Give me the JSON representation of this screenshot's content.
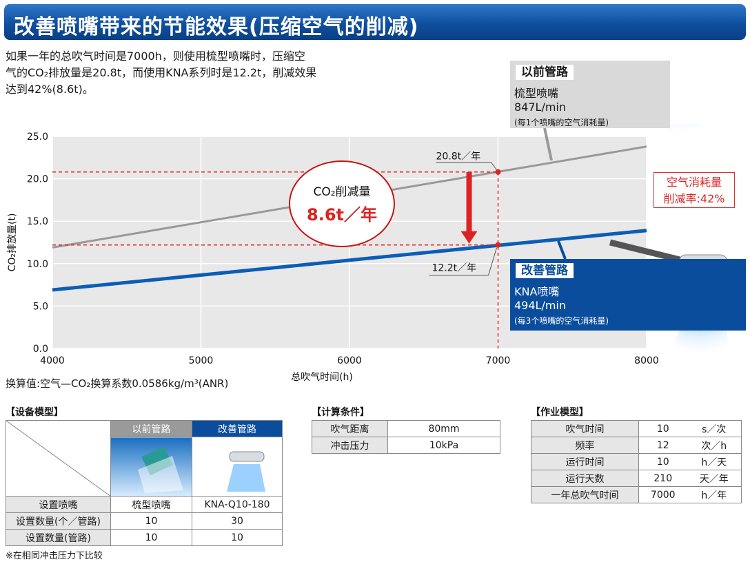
{
  "title": "改善喷嘴带来的节能效果(压缩空气的削减)",
  "intro": [
    "如果一年的总吹气时间是7000h，则使用梳型喷嘴时，压缩空",
    "气的CO₂排放量是20.8t，而使用KNA系列时是12.2t，削减效果",
    "达到42%(8.6t)。"
  ],
  "callouts": {
    "old": {
      "tag": "以前管路",
      "name": "梳型喷嘴",
      "flow": "847L/min",
      "note": "(每1个喷嘴的空气消耗量)"
    },
    "new": {
      "tag": "改善管路",
      "name": "KNA喷嘴",
      "flow": "494L/min",
      "note": "(每3个喷嘴的空气消耗量)"
    }
  },
  "rate": {
    "line1": "空气消耗量",
    "line2": "削减率:42%"
  },
  "chart_data": {
    "type": "line",
    "xlabel": "总吹气时间(h)",
    "ylabel": "CO₂排放量(t)",
    "xlim": [
      4000,
      8000
    ],
    "ylim": [
      0,
      25
    ],
    "x_ticks": [
      "4000",
      "5000",
      "6000",
      "7000",
      "8000"
    ],
    "y_ticks": [
      "0.0",
      "5.0",
      "10.0",
      "15.0",
      "20.0",
      "25.0"
    ],
    "grid": true,
    "series": [
      {
        "name": "以前管路",
        "color": "#999999",
        "x": [
          4000,
          8000
        ],
        "values": [
          11.9,
          23.8
        ]
      },
      {
        "name": "改善管路",
        "color": "#0b5db5",
        "x": [
          4000,
          8000
        ],
        "values": [
          6.9,
          13.9
        ]
      }
    ],
    "annotations": [
      {
        "label": "20.8t／年",
        "x": 7000,
        "y": 20.8
      },
      {
        "label": "12.2t／年",
        "x": 7000,
        "y": 12.2
      }
    ],
    "reduction": {
      "label": "CO₂削减量",
      "value": "8.6t／年"
    }
  },
  "formula": "换算值:空气—CO₂换算系数0.0586kg/m³(ANR)",
  "equipment": {
    "title": "【设备模型】",
    "col_old": "以前管路",
    "col_new": "改善管路",
    "rows": [
      {
        "label": "设置喷嘴",
        "old": "梳型喷嘴",
        "new": "KNA-Q10-180"
      },
      {
        "label": "设置数量(个／管路)",
        "old": "10",
        "new": "30"
      },
      {
        "label": "设置数量(管路)",
        "old": "10",
        "new": "10"
      }
    ],
    "note": "※在相同冲击压力下比较"
  },
  "calc": {
    "title": "【计算条件】",
    "rows": [
      {
        "label": "吹气距离",
        "value": "80mm"
      },
      {
        "label": "冲击压力",
        "value": "10kPa"
      }
    ]
  },
  "work": {
    "title": "【作业模型】",
    "rows": [
      {
        "label": "吹气时间",
        "value": "10",
        "unit": "s／次"
      },
      {
        "label": "频率",
        "value": "12",
        "unit": "次／h"
      },
      {
        "label": "运行时间",
        "value": "10",
        "unit": "h／天"
      },
      {
        "label": "运行天数",
        "value": "210",
        "unit": "天／年"
      },
      {
        "label": "一年总吹气时间",
        "value": "7000",
        "unit": "h／年"
      }
    ]
  }
}
